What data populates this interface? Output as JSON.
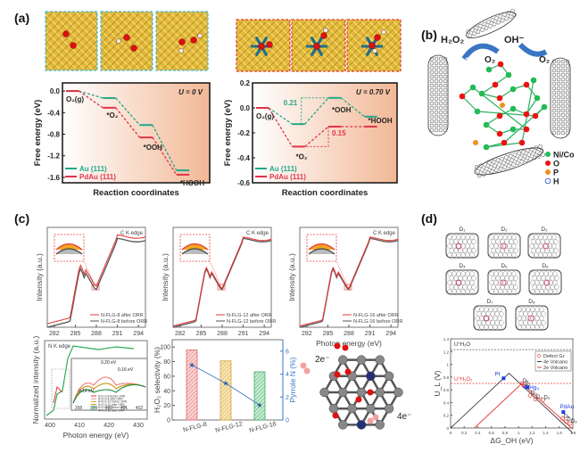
{
  "panels": {
    "a": {
      "label": "(a)"
    },
    "b": {
      "label": "(b)",
      "annotations": {
        "left_product": "H₂O₂",
        "left_reactant": "O₂",
        "left_electrons": "2e⁻",
        "right_product": "OH⁻",
        "right_reactant": "O₂",
        "right_electrons": "4e⁻"
      },
      "legend": [
        "Ni/Co",
        "O",
        "P",
        "H"
      ],
      "legend_colors": [
        "#22bb55",
        "#ee1111",
        "#f09020",
        "#4a6fd0"
      ]
    },
    "c": {
      "label": "(c)"
    },
    "d": {
      "label": "(d)",
      "structures": [
        "D₁",
        "D₂",
        "D₃",
        "D₄",
        "D₅",
        "D₆",
        "D₇",
        "D₈"
      ]
    }
  },
  "colors": {
    "au": "#22a88a",
    "pdau": "#e0344a",
    "red": "#e53935",
    "gray": "#555555",
    "orange": "#f5a623",
    "blue": "#3a75c4",
    "green": "#2eaa55",
    "yellow": "#d8a520"
  },
  "chart_data": [
    {
      "id": "a-left",
      "type": "line",
      "title": "U = 0 V",
      "xlabel": "Reaction coordinates",
      "ylabel": "Free energy (eV)",
      "ylim": [
        -1.7,
        0.15
      ],
      "yticks": [
        "0.0",
        "-0.4",
        "-0.8",
        "-1.2",
        "-1.6"
      ],
      "ytick_values": [
        0.0,
        -0.4,
        -0.8,
        -1.2,
        -1.6
      ],
      "categories": [
        "O2(g)",
        "*O2",
        "*OOH",
        "*HOOH"
      ],
      "category_labels": [
        "O₂(g)",
        "*O₂",
        "*OOH",
        "*HOOH"
      ],
      "series": [
        {
          "name": "Au (111)",
          "values": [
            0.0,
            -0.13,
            -0.63,
            -1.47
          ]
        },
        {
          "name": "PdAu (111)",
          "values": [
            0.0,
            -0.31,
            -0.86,
            -1.55
          ]
        }
      ],
      "legend": "bottom-left"
    },
    {
      "id": "a-right",
      "type": "line",
      "title": "U = 0.70 V",
      "xlabel": "Reaction coordinates",
      "ylabel": "Free energy (eV)",
      "ylim": [
        -0.6,
        0.2
      ],
      "yticks": [
        "0.2",
        "0.0",
        "-0.2",
        "-0.4",
        "-0.6"
      ],
      "ytick_values": [
        0.2,
        0.0,
        -0.2,
        -0.4,
        -0.6
      ],
      "categories": [
        "O2(g)",
        "*O2",
        "*OOH",
        "*HOOH"
      ],
      "category_labels": [
        "O₂(g)",
        "*O₂",
        "*OOH",
        "*HOOH"
      ],
      "series": [
        {
          "name": "Au (111)",
          "values": [
            0.0,
            -0.13,
            0.08,
            -0.07
          ]
        },
        {
          "name": "PdAu (111)",
          "values": [
            0.0,
            -0.31,
            -0.15,
            -0.15
          ]
        }
      ],
      "annotations": [
        "0.21",
        "0.15"
      ],
      "legend": "bottom-left"
    },
    {
      "id": "c-xanes",
      "type": "line",
      "title": "C K edge",
      "xlabel": "Photon energy (eV)",
      "ylabel": "Intensity (a.u.)",
      "xlim": [
        281,
        295
      ],
      "xticks": [
        "282",
        "285",
        "288",
        "291",
        "294"
      ],
      "panels": [
        {
          "name": "N-FLG-8",
          "legend": [
            "N-FLG-8 after ORR",
            "N-FLG-8 before ORR"
          ]
        },
        {
          "name": "N-FLG-12",
          "legend": [
            "N-FLG-12 after ORR",
            "N-FLG-12 before ORR"
          ]
        },
        {
          "name": "N-FLG-16",
          "legend": [
            "N-FLG-16 after ORR",
            "N-FLG-16 before ORR"
          ]
        }
      ]
    },
    {
      "id": "c-nk",
      "type": "line",
      "title": "N K edge",
      "xlabel": "Photon energy (eV)",
      "ylabel": "Normalized intensity (a.u.)",
      "xticks": [
        "400",
        "410",
        "420",
        "430"
      ],
      "inset_xticks": [
        "398",
        "399",
        "400",
        "401",
        "402"
      ],
      "annotations": [
        "0.20 eV",
        "0.16 eV",
        "0.14 eV"
      ],
      "legend": [
        "N-FLG-8 before ORR",
        "N-FLG-8 after ORR",
        "N-FLG-12 before ORR",
        "N-FLG-12 after ORR",
        "N-FLG-16 before ORR",
        "N-FLG-16 after ORR"
      ]
    },
    {
      "id": "c-bar",
      "type": "bar",
      "categories": [
        "N-FLG-8",
        "N-FLG-12",
        "N-FLG-16"
      ],
      "ylabel": "H₂O₂ selectivity (%)",
      "y2label": "Pyrrole N (%)",
      "ylim": [
        0,
        110
      ],
      "y2lim": [
        0,
        7
      ],
      "yticks": [
        "0",
        "20",
        "40",
        "60",
        "80",
        "100"
      ],
      "y2ticks": [
        "0",
        "2",
        "4",
        "6"
      ],
      "series": [
        {
          "name": "H2O2 selectivity",
          "values": [
            96,
            81,
            66
          ]
        },
        {
          "name": "Pyrrole N",
          "values": [
            4.8,
            3.2,
            1.3
          ]
        }
      ]
    },
    {
      "id": "c-scheme",
      "type": "diagram",
      "labels": [
        "2e⁻",
        "4e⁻"
      ]
    },
    {
      "id": "d-volcano",
      "type": "line",
      "xlabel": "ΔG_OH (eV)",
      "ylabel": "U_L (V)",
      "xlim": [
        0,
        1.8
      ],
      "ylim": [
        0,
        1.4
      ],
      "xticks": [
        "0",
        "0.2",
        "0.4",
        "0.6",
        "0.8",
        "1",
        "1.2",
        "1.4",
        "1.6",
        "1.8"
      ],
      "yticks": [
        "0",
        "0.2",
        "0.4",
        "0.6",
        "0.8",
        "1",
        "1.2",
        "1.4"
      ],
      "reference_lines": [
        {
          "label": "U°H₂O",
          "value": 1.23
        },
        {
          "label": "U°H₂O₂",
          "value": 0.7
        }
      ],
      "series": [
        {
          "name": "Defect Gr",
          "points": [
            [
              "D₁",
              1.05,
              0.7
            ],
            [
              "D₂",
              1.08,
              0.66
            ],
            [
              "D₃",
              1.17,
              0.51
            ],
            [
              "D₄",
              1.25,
              0.45
            ],
            [
              "D₅",
              1.36,
              0.44
            ],
            [
              "D₆",
              1.65,
              0.15
            ],
            [
              "D₇",
              1.7,
              0.1
            ],
            [
              "D₈",
              1.76,
              0.07
            ]
          ]
        },
        {
          "name": "4e Volcano"
        },
        {
          "name": "2e Volcano"
        }
      ],
      "labeled_points": [
        {
          "name": "Pt",
          "x": 0.78,
          "y": 0.78
        },
        {
          "name": "PtHg₄",
          "x": 1.13,
          "y": 0.64
        },
        {
          "name": "PdAu",
          "x": 1.66,
          "y": 0.25
        }
      ],
      "legend": "top-right"
    }
  ]
}
